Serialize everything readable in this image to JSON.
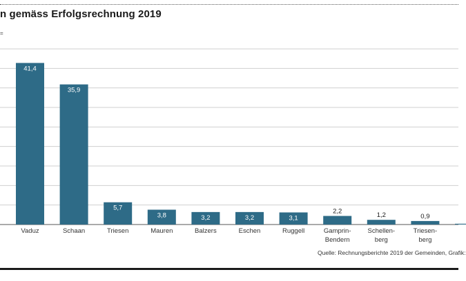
{
  "title": "n gemäss Erfolgsrechnung 2019",
  "unit_fragment": "=",
  "source": "Quelle: Rechnungsberichte 2019 der Gemeinden, Grafik:",
  "colors": {
    "bar": "#2e6b87",
    "grid": "#cfcfcf",
    "axis": "#555555",
    "bar_label": "#ffffff",
    "outer_label": "#1a1a1a"
  },
  "chart_data": {
    "type": "bar",
    "title": "n gemäss Erfolgsrechnung 2019",
    "xlabel": "",
    "ylabel": "",
    "ylim": [
      0,
      45
    ],
    "grid": true,
    "categories": [
      "Vaduz",
      "Schaan",
      "Triesen",
      "Mauren",
      "Balzers",
      "Eschen",
      "Ruggell",
      "Gamprin-Bendern",
      "Schellenberg",
      "Triesenberg",
      ""
    ],
    "category_lines": [
      [
        "Vaduz"
      ],
      [
        "Schaan"
      ],
      [
        "Triesen"
      ],
      [
        "Mauren"
      ],
      [
        "Balzers"
      ],
      [
        "Eschen"
      ],
      [
        "Ruggell"
      ],
      [
        "Gamprin-",
        "Bendern"
      ],
      [
        "Schellen-",
        "berg"
      ],
      [
        "Triesen-",
        "berg"
      ],
      [
        ""
      ]
    ],
    "values": [
      41.4,
      35.9,
      5.7,
      3.8,
      3.2,
      3.2,
      3.1,
      2.2,
      1.2,
      0.9,
      0.2
    ],
    "value_labels": [
      "41,4",
      "35,9",
      "5,7",
      "3,8",
      "3,2",
      "3,2",
      "3,1",
      "2,2",
      "1,2",
      "0,9",
      ""
    ]
  }
}
